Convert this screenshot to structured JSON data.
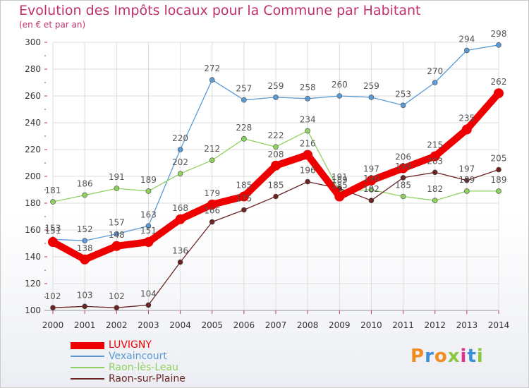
{
  "title": "Evolution des Impôts locaux pour la Commune par Habitant",
  "subtitle": "(en € et par an)",
  "logo": {
    "text": "Proxiti"
  },
  "chart_data": {
    "type": "line",
    "title": "Evolution des Impôts locaux pour la Commune par Habitant",
    "subtitle": "(en € et par an)",
    "xlabel": "",
    "ylabel": "",
    "x": [
      2000,
      2001,
      2002,
      2003,
      2004,
      2005,
      2006,
      2007,
      2008,
      2009,
      2010,
      2011,
      2012,
      2013,
      2014
    ],
    "ylim": [
      100,
      300
    ],
    "yticks": [
      100,
      120,
      140,
      160,
      180,
      200,
      220,
      240,
      260,
      280,
      300
    ],
    "grid": true,
    "legend_position": "bottom-left",
    "series": [
      {
        "name": "LUVIGNY",
        "color": "#ee0000",
        "emphasis": true,
        "values": [
          151,
          138,
          148,
          151,
          168,
          179,
          185,
          208,
          216,
          185,
          197,
          206,
          215,
          235,
          262
        ]
      },
      {
        "name": "Vexaincourt",
        "color": "#5b9bd5",
        "emphasis": false,
        "values": [
          153,
          152,
          157,
          163,
          220,
          272,
          257,
          259,
          258,
          260,
          259,
          253,
          270,
          294,
          298
        ]
      },
      {
        "name": "Raon-lès-Leau",
        "color": "#8fd160",
        "emphasis": false,
        "values": [
          181,
          186,
          191,
          189,
          202,
          212,
          228,
          222,
          234,
          189,
          190,
          185,
          182,
          189,
          189
        ]
      },
      {
        "name": "Raon-sur-Plaine",
        "color": "#6b2424",
        "emphasis": false,
        "values": [
          102,
          103,
          102,
          104,
          136,
          166,
          175,
          185,
          196,
          191,
          182,
          199,
          203,
          197,
          205
        ]
      }
    ]
  }
}
